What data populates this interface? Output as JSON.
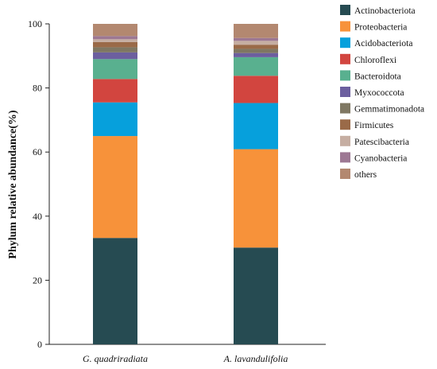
{
  "chart_data": {
    "type": "bar",
    "stacked": true,
    "title": "",
    "xlabel": "",
    "ylabel": "Phylum relative abundance(%)",
    "ylim": [
      0,
      100
    ],
    "yticks": [
      0,
      20,
      40,
      60,
      80,
      100
    ],
    "grid": false,
    "legend_position": "right",
    "categories": [
      "G. quadriradiata",
      "A. lavandulifolia"
    ],
    "series": [
      {
        "name": "Actinobacteriota",
        "color": "#264b52",
        "values": [
          33.2,
          30.2
        ]
      },
      {
        "name": "Proteobacteria",
        "color": "#f7923a",
        "values": [
          31.8,
          30.7
        ]
      },
      {
        "name": "Acidobacteriota",
        "color": "#06a0dc",
        "values": [
          10.5,
          14.4
        ]
      },
      {
        "name": "Chloroflexi",
        "color": "#d2453f",
        "values": [
          7.3,
          8.5
        ]
      },
      {
        "name": "Bacteroidota",
        "color": "#59b08f",
        "values": [
          6.2,
          5.8
        ]
      },
      {
        "name": "Myxococcota",
        "color": "#6c5f9f",
        "values": [
          2.1,
          1.3
        ]
      },
      {
        "name": "Gemmatimonadota",
        "color": "#7f7762",
        "values": [
          1.6,
          1.3
        ]
      },
      {
        "name": "Firmicutes",
        "color": "#9a6a48",
        "values": [
          1.6,
          1.3
        ]
      },
      {
        "name": "Patescibacteria",
        "color": "#c6aea2",
        "values": [
          0.9,
          1.2
        ]
      },
      {
        "name": "Cyanobacteria",
        "color": "#9d7893",
        "values": [
          1.0,
          0.9
        ]
      },
      {
        "name": "others",
        "color": "#b38870",
        "values": [
          3.8,
          4.4
        ]
      }
    ]
  }
}
